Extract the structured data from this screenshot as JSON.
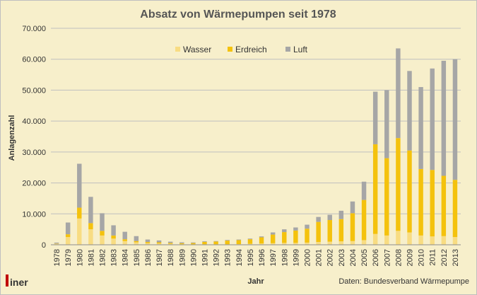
{
  "chart_data": {
    "type": "bar",
    "stacked": true,
    "title": "Absatz von Wärmepumpen seit 1978",
    "xlabel": "Jahr",
    "ylabel": "Anlagenzahl",
    "ylim": [
      0,
      70000
    ],
    "yticks": [
      "0",
      "10.000",
      "20.000",
      "30.000",
      "40.000",
      "50.000",
      "60.000",
      "70.000"
    ],
    "grid": true,
    "legend_position": "top-right",
    "categories": [
      "1978",
      "1979",
      "1980",
      "1981",
      "1982",
      "1983",
      "1984",
      "1985",
      "1986",
      "1987",
      "1988",
      "1989",
      "1990",
      "1991",
      "1992",
      "1993",
      "1994",
      "1995",
      "1996",
      "1997",
      "1998",
      "1999",
      "2000",
      "2001",
      "2002",
      "2003",
      "2004",
      "2005",
      "2006",
      "2007",
      "2008",
      "2009",
      "2010",
      "2011",
      "2012",
      "2013"
    ],
    "series": [
      {
        "name": "Wasser",
        "color": "#f8dc82",
        "values": [
          300,
          2500,
          8500,
          5000,
          3000,
          2000,
          1200,
          800,
          500,
          400,
          300,
          200,
          150,
          150,
          150,
          150,
          200,
          300,
          400,
          500,
          600,
          600,
          700,
          900,
          1000,
          1100,
          1200,
          1500,
          3500,
          3000,
          4500,
          4000,
          3000,
          2700,
          2800,
          2500
        ]
      },
      {
        "name": "Erdreich",
        "color": "#f4c20d",
        "values": [
          100,
          900,
          3500,
          2000,
          1500,
          1000,
          600,
          400,
          400,
          400,
          300,
          300,
          400,
          800,
          900,
          1200,
          1300,
          1500,
          2000,
          2800,
          3500,
          4000,
          4500,
          6500,
          7000,
          7200,
          9000,
          13000,
          29000,
          25000,
          30000,
          26500,
          21500,
          21500,
          19500,
          18500
        ]
      },
      {
        "name": "Luft",
        "color": "#a6a6a6",
        "values": [
          300,
          3800,
          14200,
          8500,
          5700,
          3300,
          2400,
          1600,
          800,
          600,
          400,
          300,
          200,
          200,
          150,
          200,
          200,
          200,
          300,
          700,
          900,
          1000,
          1300,
          1600,
          1700,
          2700,
          3800,
          5900,
          17000,
          22000,
          29000,
          25700,
          26500,
          32800,
          37200,
          39000
        ]
      }
    ],
    "source": "Daten: Bundesverband Wärmepumpe"
  },
  "logo": {
    "text": "iner",
    "color": "#c00000"
  }
}
